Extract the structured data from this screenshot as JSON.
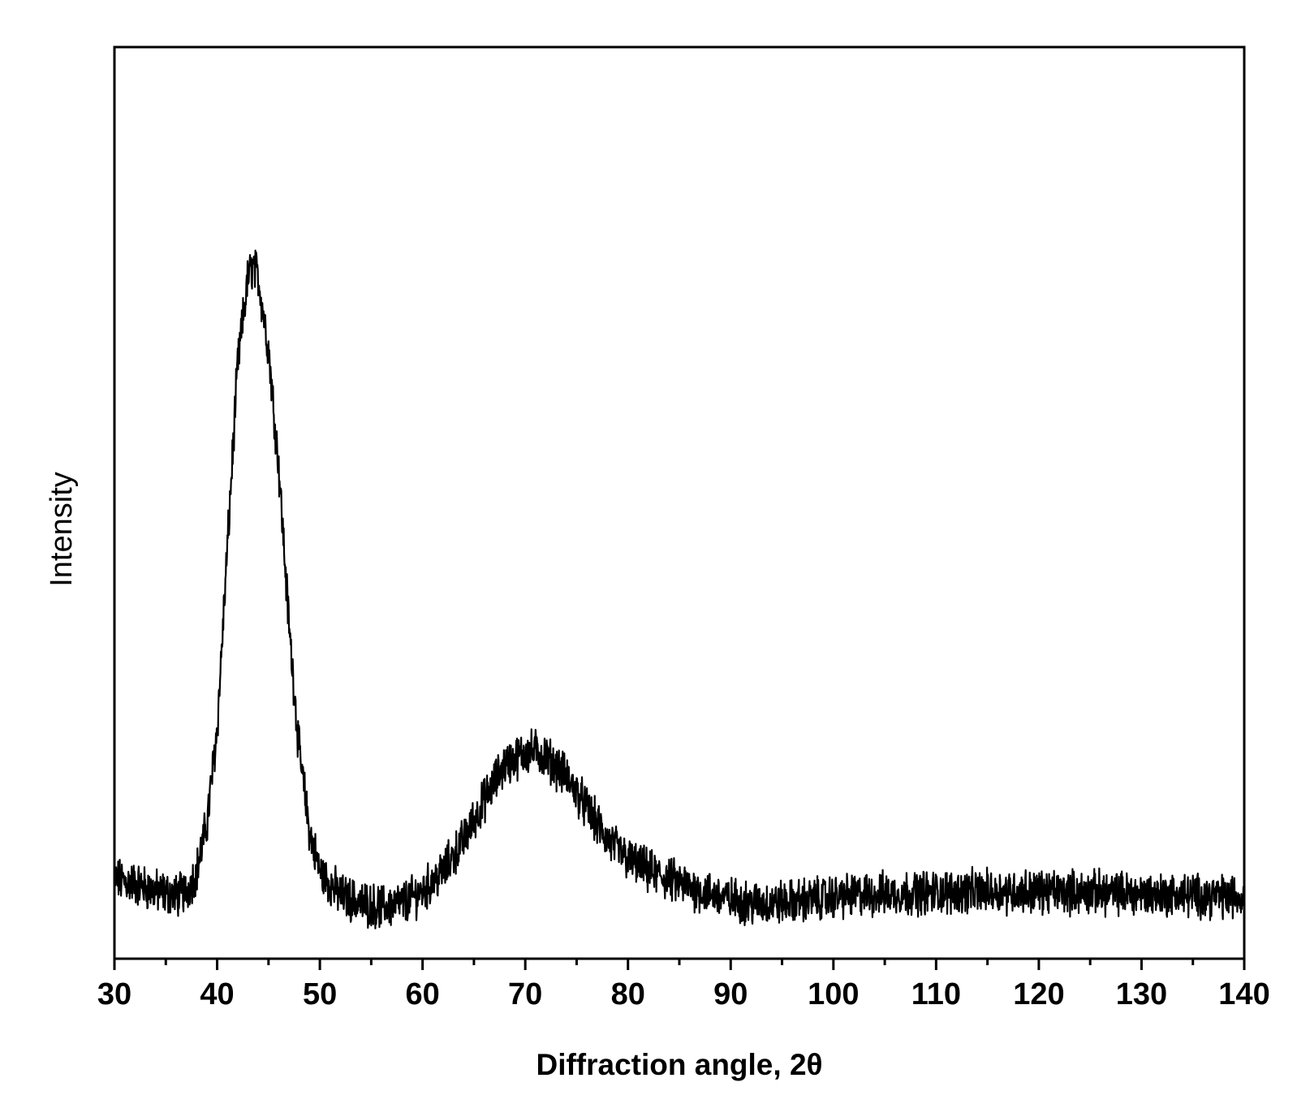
{
  "chart_data": {
    "type": "line",
    "title": "",
    "xlabel": "Diffraction angle, 2θ",
    "ylabel": "Intensity",
    "xlim": [
      30,
      140
    ],
    "ylim": [
      0,
      1000
    ],
    "x_ticks": [
      30,
      40,
      50,
      60,
      70,
      80,
      90,
      100,
      110,
      120,
      130,
      140
    ],
    "x_tick_labels": [
      "30",
      "40",
      "50",
      "60",
      "70",
      "80",
      "90",
      "100",
      "110",
      "120",
      "130",
      "140"
    ],
    "y_tick_labels_shown": false,
    "grid": false,
    "legend": "none",
    "line_color": "#000000",
    "series": [
      {
        "x": [
          30,
          32,
          34,
          36,
          37,
          38,
          39,
          40,
          41,
          42,
          43,
          43.5,
          44,
          45,
          46,
          47,
          48,
          49,
          50,
          52,
          54,
          56,
          58,
          60,
          62,
          64,
          66,
          68,
          70,
          71,
          72,
          74,
          76,
          78,
          80,
          82,
          84,
          86,
          88,
          90,
          92,
          94,
          96,
          98,
          100,
          105,
          110,
          115,
          120,
          125,
          130,
          135,
          140
        ],
        "y": [
          100,
          95,
          85,
          80,
          85,
          110,
          170,
          290,
          520,
          750,
          860,
          875,
          860,
          770,
          620,
          420,
          260,
          160,
          110,
          80,
          70,
          65,
          70,
          85,
          110,
          150,
          200,
          245,
          260,
          262,
          255,
          230,
          190,
          150,
          125,
          110,
          100,
          90,
          82,
          75,
          70,
          70,
          72,
          75,
          78,
          82,
          84,
          85,
          85,
          84,
          82,
          80,
          78
        ]
      }
    ]
  }
}
